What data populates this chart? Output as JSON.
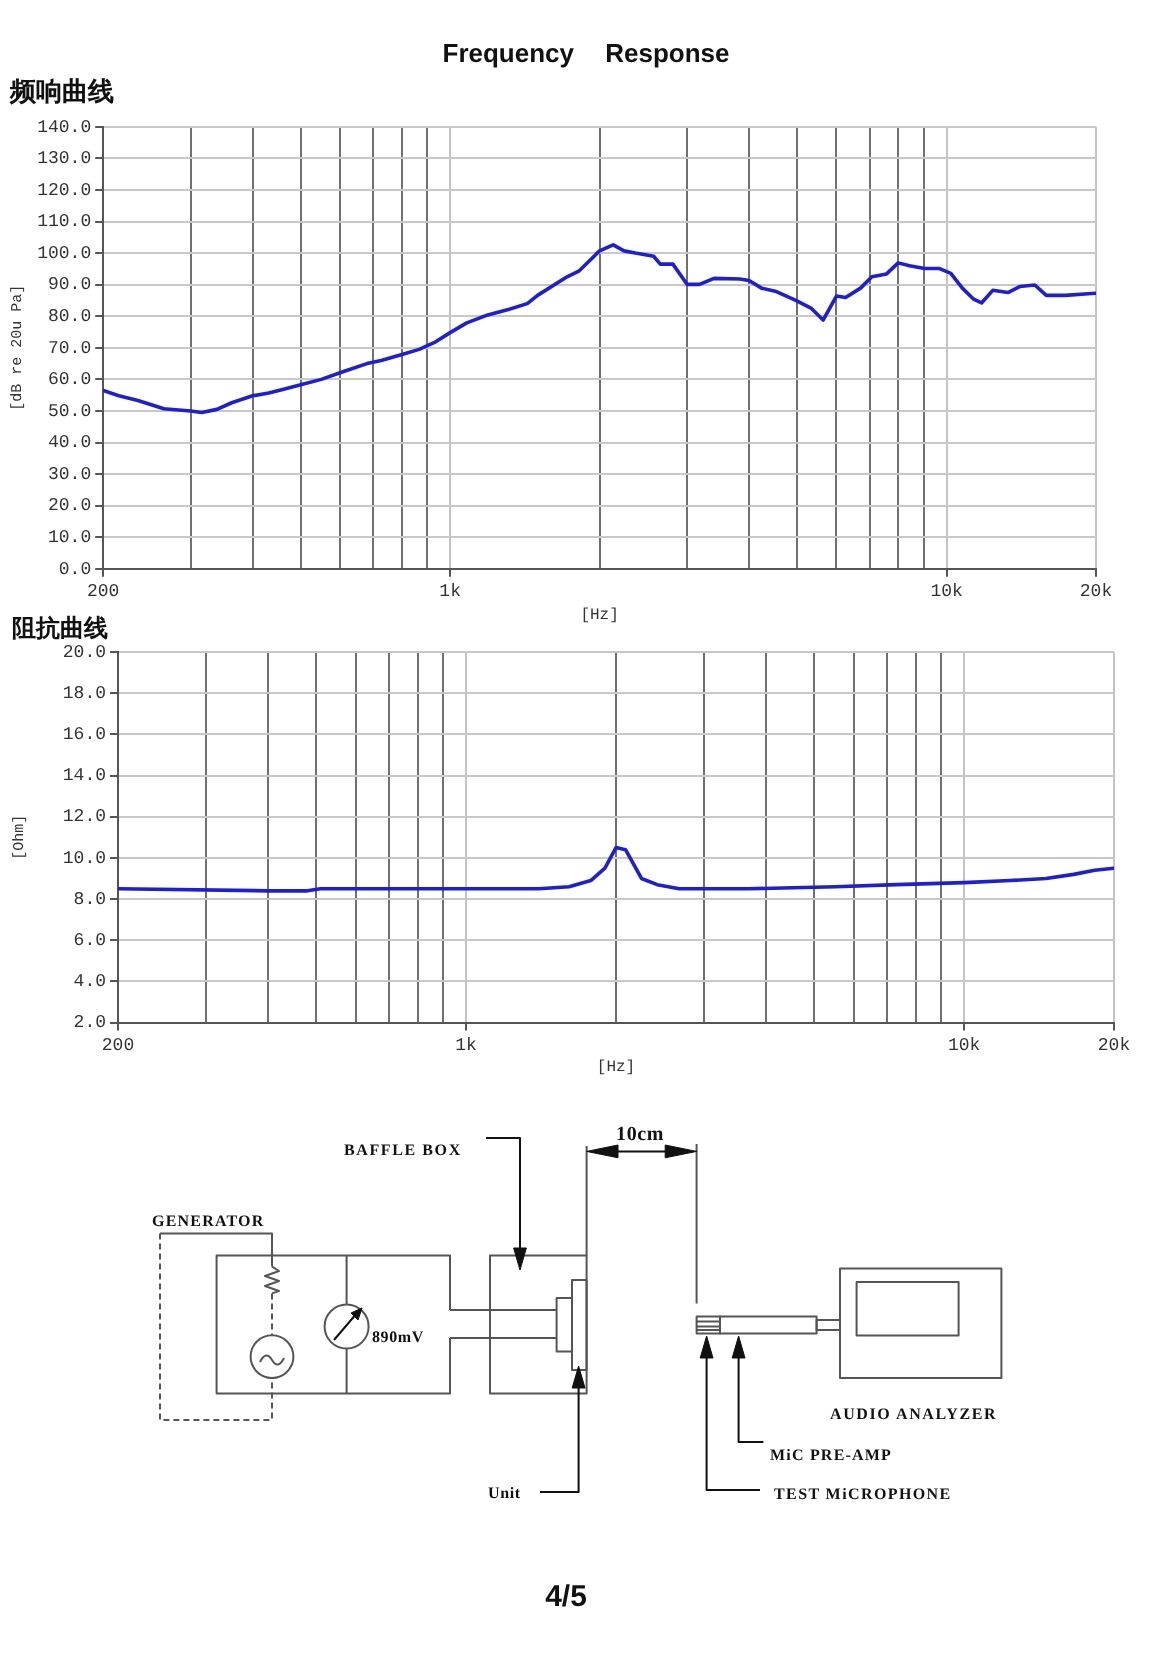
{
  "chart_data": [
    {
      "type": "line",
      "title": "Frequency Response",
      "subtitle": "频响曲线",
      "xlabel": "[Hz]",
      "ylabel": "[dB re 20u Pa]",
      "log": "x",
      "grid": true,
      "marker": "none",
      "line_style": "solid",
      "x": [
        200,
        215,
        235,
        265,
        300,
        316,
        339,
        363,
        400,
        431,
        462,
        500,
        550,
        610,
        680,
        726,
        800,
        866,
        930,
        1000,
        1080,
        1180,
        1310,
        1430,
        1500,
        1720,
        1820,
        2000,
        2130,
        2240,
        2360,
        2570,
        2650,
        2810,
        3000,
        3180,
        3400,
        3830,
        4000,
        4240,
        4540,
        4970,
        5330,
        5640,
        6000,
        6260,
        6710,
        7070,
        7570,
        7990,
        8420,
        9030,
        9680,
        10200,
        10760,
        11340,
        11760,
        12390,
        13290,
        14040,
        15060,
        15880,
        17350,
        19270,
        20000
      ],
      "series": [
        {
          "color": "#1f1fd2",
          "values": [
            56.5,
            54.8,
            53.3,
            50.7,
            50.0,
            49.5,
            50.5,
            52.6,
            54.8,
            55.7,
            56.9,
            58.3,
            60.0,
            62.5,
            65.0,
            66.0,
            67.9,
            69.5,
            71.7,
            74.8,
            77.9,
            80.2,
            82.1,
            84.0,
            86.6,
            92.5,
            94.4,
            100.7,
            102.6,
            100.7,
            100.0,
            99.0,
            96.5,
            96.5,
            90.1,
            90.1,
            92.0,
            91.8,
            91.3,
            88.9,
            87.8,
            85.0,
            82.6,
            78.8,
            86.4,
            85.9,
            88.9,
            92.5,
            93.4,
            96.9,
            96.0,
            95.1,
            95.1,
            93.6,
            88.9,
            85.4,
            84.2,
            88.2,
            87.5,
            89.4,
            89.9,
            86.6,
            86.6,
            87.1,
            87.3
          ]
        }
      ],
      "xlim": [
        200,
        20000
      ],
      "xticks": [
        200,
        {
          "value": 300,
          "label": null
        },
        {
          "value": 400,
          "label": null
        },
        {
          "value": 500,
          "label": null
        },
        {
          "value": 600,
          "label": null
        },
        {
          "value": 700,
          "label": null
        },
        {
          "value": 800,
          "label": null
        },
        {
          "value": 900,
          "label": null
        },
        {
          "value": 1000,
          "label": "1k"
        },
        {
          "value": 2000,
          "label": null
        },
        {
          "value": 3000,
          "label": null
        },
        {
          "value": 4000,
          "label": null
        },
        {
          "value": 5000,
          "label": null
        },
        {
          "value": 6000,
          "label": null
        },
        {
          "value": 7000,
          "label": null
        },
        {
          "value": 8000,
          "label": null
        },
        {
          "value": 9000,
          "label": null
        },
        {
          "value": 10000,
          "label": "10k"
        },
        {
          "value": 20000,
          "label": "20k"
        }
      ],
      "ylim": [
        0,
        140
      ],
      "yticks": [
        {
          "value": 0,
          "label": "0.0"
        },
        {
          "value": 10,
          "label": "10.0"
        },
        {
          "value": 20,
          "label": "20.0"
        },
        {
          "value": 30,
          "label": "30.0"
        },
        {
          "value": 40,
          "label": "40.0"
        },
        {
          "value": 50,
          "label": "50.0"
        },
        {
          "value": 60,
          "label": "60.0"
        },
        {
          "value": 70,
          "label": "70.0"
        },
        {
          "value": 80,
          "label": "80.0"
        },
        {
          "value": 90,
          "label": "90.0"
        },
        {
          "value": 100,
          "label": "100.0"
        },
        {
          "value": 110,
          "label": "110.0"
        },
        {
          "value": 120,
          "label": "120.0"
        },
        {
          "value": 130,
          "label": "130.0"
        },
        {
          "value": 140,
          "label": "140.0"
        }
      ]
    },
    {
      "type": "line",
      "title": "阻抗曲线",
      "xlabel": "[Hz]",
      "ylabel": "[Ohm]",
      "log": "x",
      "grid": true,
      "marker": "none",
      "line_style": "solid",
      "x": [
        200,
        400,
        480,
        510,
        1400,
        1610,
        1780,
        1900,
        2000,
        2090,
        2250,
        2420,
        2680,
        3000,
        3690,
        5520,
        7310,
        10000,
        12380,
        14600,
        16600,
        18290,
        20000
      ],
      "series": [
        {
          "color": "#1f1fd2",
          "values": [
            8.5,
            8.4,
            8.4,
            8.5,
            8.5,
            8.6,
            8.9,
            9.5,
            10.5,
            10.4,
            9.0,
            8.7,
            8.5,
            8.5,
            8.5,
            8.6,
            8.7,
            8.8,
            8.9,
            9.0,
            9.2,
            9.4,
            9.5
          ]
        }
      ],
      "xlim": [
        200,
        20000
      ],
      "xticks": [
        200,
        {
          "value": 300,
          "label": null
        },
        {
          "value": 400,
          "label": null
        },
        {
          "value": 500,
          "label": null
        },
        {
          "value": 600,
          "label": null
        },
        {
          "value": 700,
          "label": null
        },
        {
          "value": 800,
          "label": null
        },
        {
          "value": 900,
          "label": null
        },
        {
          "value": 1000,
          "label": "1k"
        },
        {
          "value": 2000,
          "label": null
        },
        {
          "value": 3000,
          "label": null
        },
        {
          "value": 4000,
          "label": null
        },
        {
          "value": 5000,
          "label": null
        },
        {
          "value": 6000,
          "label": null
        },
        {
          "value": 7000,
          "label": null
        },
        {
          "value": 8000,
          "label": null
        },
        {
          "value": 9000,
          "label": null
        },
        {
          "value": 10000,
          "label": "10k"
        },
        {
          "value": 20000,
          "label": "20k"
        }
      ],
      "ylim": [
        2,
        20
      ],
      "yticks": [
        {
          "value": 2,
          "label": "2.0"
        },
        {
          "value": 4,
          "label": "4.0"
        },
        {
          "value": 6,
          "label": "6.0"
        },
        {
          "value": 8,
          "label": "8.0"
        },
        {
          "value": 10,
          "label": "10.0"
        },
        {
          "value": 12,
          "label": "12.0"
        },
        {
          "value": 14,
          "label": "14.0"
        },
        {
          "value": 16,
          "label": "16.0"
        },
        {
          "value": 18,
          "label": "18.0"
        },
        {
          "value": 20,
          "label": "20.0"
        }
      ]
    },
    {
      "type": "other",
      "annotations": [
        "BAFFLE BOX",
        "10cm",
        "GENERATOR",
        "890mV",
        "Unit",
        "TEST MiCROPHONE",
        "MiC PRE-AMP",
        "AUDIO ANALYZER",
        "4/5"
      ]
    }
  ]
}
